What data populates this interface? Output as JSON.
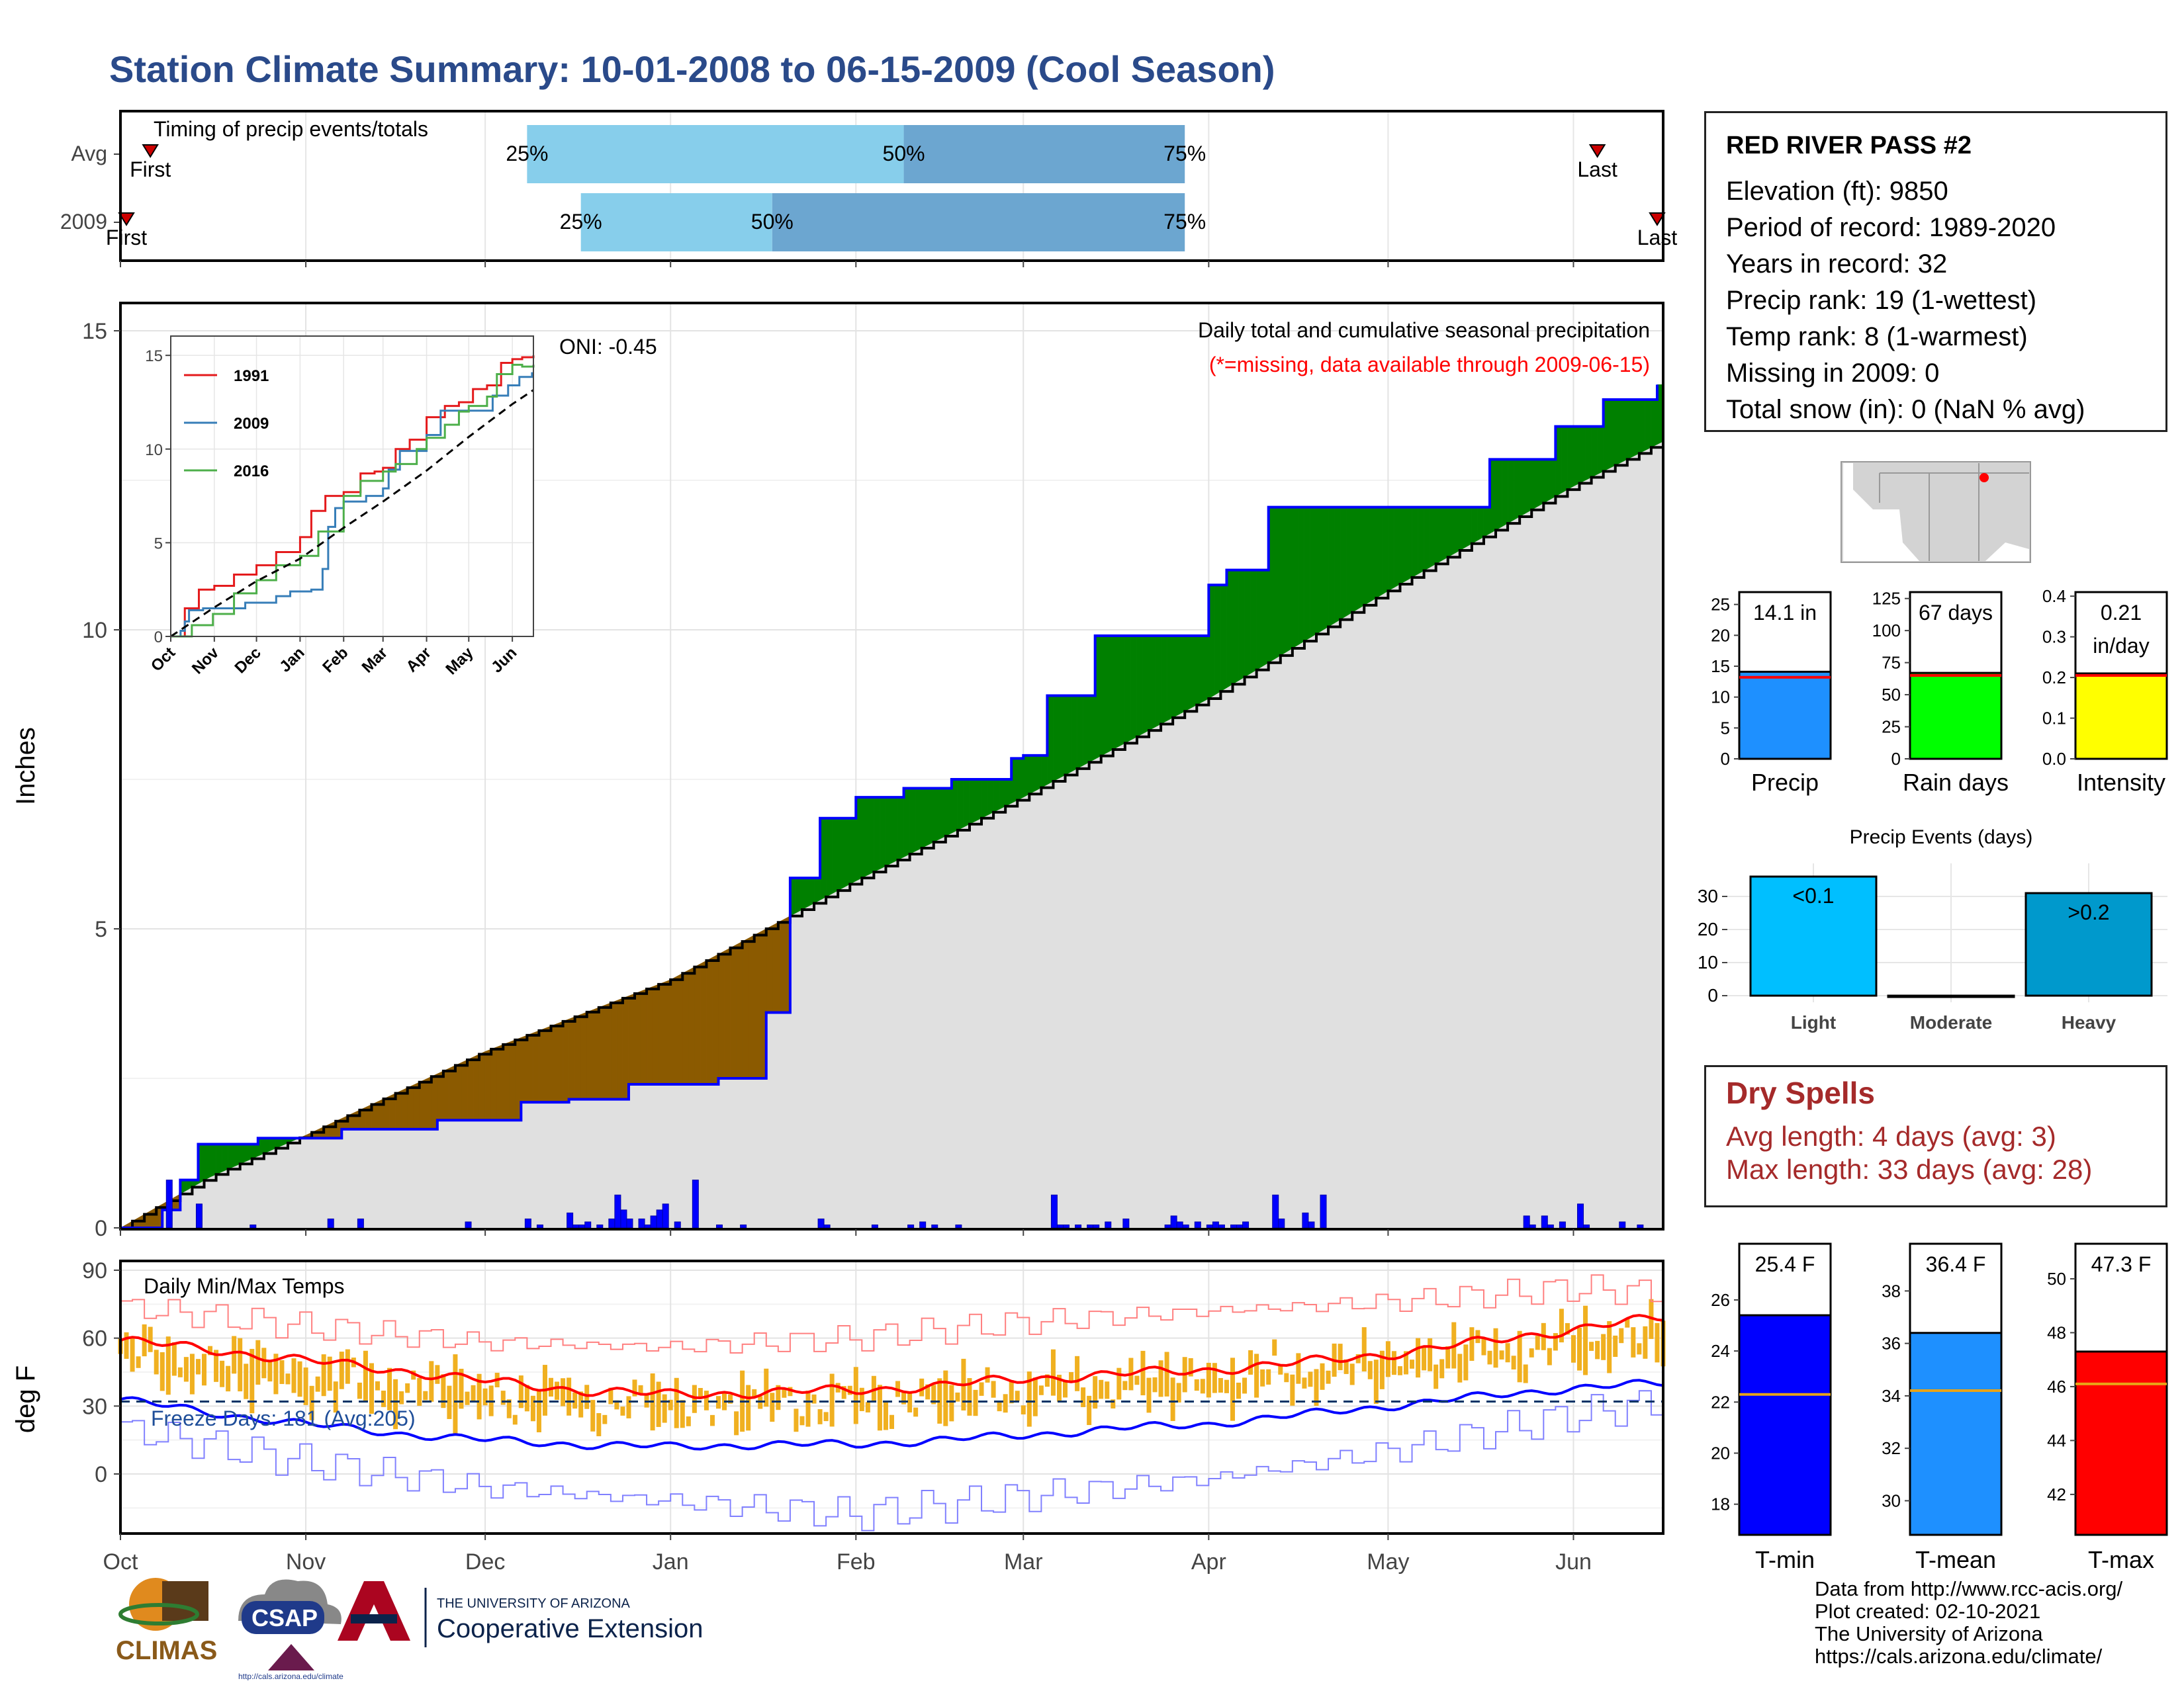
{
  "title": "Station Climate Summary: 10-01-2008 to 06-15-2009 (Cool Season)",
  "timing_panel": {
    "label": "Timing of precip events/totals",
    "rows": [
      {
        "label": "Avg",
        "first": "First",
        "last": "Last",
        "first_x": 5,
        "last_x": 247,
        "q25": 68,
        "q50": 131,
        "q75": 178
      },
      {
        "label": "2009",
        "first": "First",
        "last": "Last",
        "first_x": 1,
        "last_x": 257,
        "q25": 77,
        "q50": 109,
        "q75": 178
      }
    ],
    "q_labels": [
      "25%",
      "50%",
      "75%"
    ],
    "colors": {
      "q25_50": "#87ceeb",
      "q50_75": "#6ca6d0",
      "marker": "#cc0000"
    }
  },
  "station": {
    "name": "RED RIVER PASS #2",
    "lines": [
      "Elevation (ft): 9850",
      "Period of record: 1989-2020",
      "Years in record: 32",
      "Precip rank: 19 (1-wettest)",
      "Temp rank: 8 (1-warmest)",
      "Missing in 2009: 0",
      "Total snow (in): 0 (NaN % avg)"
    ]
  },
  "dry_spells": {
    "title": "Dry Spells",
    "avg": "Avg length: 4 days (avg: 3)",
    "max": "Max length: 33 days (avg: 28)"
  },
  "footer": {
    "lines": [
      "Data from http://www.rcc-acis.org/",
      "Plot created: 02-10-2021",
      "The University of Arizona",
      "https://cals.arizona.edu/climate/"
    ],
    "logo_climas": "CLIMAS",
    "logo_csap": "CSAP",
    "logo_csap_url": "http://cals.arizona.edu/climate",
    "logo_ua_small": "THE UNIVERSITY OF ARIZONA",
    "logo_ua_big": "Cooperative Extension"
  },
  "chart_data": [
    {
      "id": "cumulative-precip",
      "type": "area",
      "title": "Daily total and cumulative seasonal precipitation",
      "subtitle": "(*=missing, data available through 2009-06-15)",
      "annotation": "ONI: -0.45",
      "ylabel": "Inches",
      "ylim": [
        0,
        15.5
      ],
      "yticks": [
        0,
        5,
        10,
        15
      ],
      "x_months": [
        "Oct",
        "Nov",
        "Dec",
        "Jan",
        "Feb",
        "Mar",
        "Apr",
        "May",
        "Jun"
      ],
      "month_starts": [
        0,
        31,
        61,
        92,
        123,
        151,
        182,
        212,
        243
      ],
      "x_range_days": [
        0,
        258
      ],
      "series": [
        {
          "name": "2009",
          "days": [
            0,
            7,
            10,
            13,
            23,
            31,
            37,
            45,
            53,
            61,
            67,
            75,
            85,
            100,
            108,
            112,
            117,
            123,
            131,
            139,
            149,
            151,
            155,
            163,
            182,
            185,
            192,
            202,
            224,
            229,
            240,
            248,
            257
          ],
          "values": [
            0,
            0.3,
            0.8,
            1.4,
            1.5,
            1.5,
            1.65,
            1.65,
            1.8,
            1.8,
            2.1,
            2.15,
            2.4,
            2.5,
            3.6,
            5.85,
            6.85,
            7.2,
            7.35,
            7.5,
            7.85,
            7.9,
            8.9,
            9.9,
            10.75,
            11.0,
            12.05,
            12.05,
            12.05,
            12.85,
            13.4,
            13.85,
            14.1
          ]
        },
        {
          "name": "Avg",
          "days": [
            0,
            15,
            31,
            61,
            92,
            123,
            151,
            182,
            212,
            243,
            258
          ],
          "values": [
            0,
            0.85,
            1.55,
            2.95,
            4.15,
            5.8,
            7.2,
            8.85,
            10.65,
            12.4,
            13.15
          ]
        }
      ],
      "daily_bars": [
        [
          8,
          0.8
        ],
        [
          13,
          0.4
        ],
        [
          22,
          0.05
        ],
        [
          35,
          0.15
        ],
        [
          40,
          0.15
        ],
        [
          58,
          0.1
        ],
        [
          68,
          0.15
        ],
        [
          70,
          0.05
        ],
        [
          75,
          0.25
        ],
        [
          76,
          0.05
        ],
        [
          77,
          0.05
        ],
        [
          78,
          0.1
        ],
        [
          80,
          0.05
        ],
        [
          82,
          0.15
        ],
        [
          83,
          0.55
        ],
        [
          84,
          0.3
        ],
        [
          85,
          0.15
        ],
        [
          87,
          0.15
        ],
        [
          88,
          0.05
        ],
        [
          89,
          0.2
        ],
        [
          90,
          0.3
        ],
        [
          91,
          0.4
        ],
        [
          93,
          0.1
        ],
        [
          96,
          0.8
        ],
        [
          100,
          0.05
        ],
        [
          104,
          0.05
        ],
        [
          117,
          0.15
        ],
        [
          118,
          0.05
        ],
        [
          126,
          0.05
        ],
        [
          132,
          0.05
        ],
        [
          134,
          0.1
        ],
        [
          136,
          0.05
        ],
        [
          140,
          0.05
        ],
        [
          156,
          0.55
        ],
        [
          157,
          0.05
        ],
        [
          158,
          0.05
        ],
        [
          160,
          0.05
        ],
        [
          162,
          0.05
        ],
        [
          163,
          0.05
        ],
        [
          165,
          0.1
        ],
        [
          168,
          0.15
        ],
        [
          175,
          0.05
        ],
        [
          176,
          0.2
        ],
        [
          177,
          0.1
        ],
        [
          178,
          0.05
        ],
        [
          180,
          0.1
        ],
        [
          182,
          0.05
        ],
        [
          183,
          0.1
        ],
        [
          184,
          0.05
        ],
        [
          186,
          0.05
        ],
        [
          187,
          0.05
        ],
        [
          188,
          0.1
        ],
        [
          193,
          0.55
        ],
        [
          194,
          0.15
        ],
        [
          198,
          0.25
        ],
        [
          199,
          0.1
        ],
        [
          201,
          0.55
        ],
        [
          235,
          0.2
        ],
        [
          236,
          0.05
        ],
        [
          238,
          0.2
        ],
        [
          239,
          0.05
        ],
        [
          241,
          0.1
        ],
        [
          244,
          0.4
        ],
        [
          245,
          0.05
        ],
        [
          251,
          0.1
        ],
        [
          254,
          0.05
        ]
      ],
      "colors": {
        "above": "#008000",
        "below": "#8b5a00",
        "avg_fill": "#e0e0e0",
        "line": "#0000ff",
        "bars": "#0000ff"
      }
    },
    {
      "id": "inset-cumulative",
      "type": "line",
      "yticks": [
        0,
        5,
        10,
        15
      ],
      "ylim": [
        0,
        15.5
      ],
      "x_months": [
        "Oct",
        "Nov",
        "Dec",
        "Jan",
        "Feb",
        "Mar",
        "Apr",
        "May",
        "Jun"
      ],
      "series": [
        {
          "name": "1991",
          "color": "#e41a1c",
          "days": [
            0,
            10,
            20,
            31,
            45,
            61,
            75,
            92,
            100,
            110,
            123,
            135,
            145,
            151,
            160,
            170,
            182,
            195,
            205,
            215,
            225,
            235,
            243,
            250,
            258
          ],
          "values": [
            0,
            1.5,
            2.5,
            2.7,
            3.3,
            3.8,
            4.5,
            5.3,
            6.7,
            7.5,
            7.7,
            8.7,
            8.8,
            9.0,
            10.0,
            10.5,
            11.7,
            12.3,
            12.5,
            13.2,
            13.4,
            14.6,
            14.8,
            14.9,
            15.0
          ]
        },
        {
          "name": "2009",
          "color": "#377eb8",
          "days": [
            0,
            7,
            10,
            13,
            23,
            31,
            53,
            75,
            85,
            100,
            108,
            112,
            117,
            123,
            139,
            151,
            155,
            163,
            182,
            192,
            202,
            229,
            240,
            248,
            257
          ],
          "values": [
            0,
            0.3,
            0.8,
            1.4,
            1.5,
            1.5,
            1.8,
            2.15,
            2.4,
            2.5,
            3.6,
            5.85,
            6.85,
            7.2,
            7.5,
            7.9,
            8.9,
            9.9,
            10.75,
            12.05,
            12.05,
            12.85,
            13.4,
            13.85,
            14.1
          ]
        },
        {
          "name": "2016",
          "color": "#4daf4a",
          "days": [
            0,
            15,
            30,
            45,
            61,
            75,
            92,
            105,
            123,
            135,
            151,
            160,
            175,
            182,
            195,
            205,
            212,
            225,
            232,
            243,
            250,
            258
          ],
          "values": [
            0,
            0.6,
            1.2,
            2.3,
            3.0,
            3.8,
            4.3,
            5.6,
            7.5,
            8.3,
            8.8,
            9.2,
            10.0,
            10.6,
            11.3,
            12.0,
            12.3,
            12.8,
            14.0,
            14.5,
            14.4,
            14.5
          ]
        },
        {
          "name": "Avg",
          "color": "#000000",
          "dashed": true,
          "days": [
            0,
            31,
            61,
            92,
            123,
            151,
            182,
            212,
            243,
            258
          ],
          "values": [
            0,
            1.55,
            2.95,
            4.15,
            5.8,
            7.2,
            8.85,
            10.65,
            12.4,
            13.15
          ]
        }
      ]
    },
    {
      "id": "daily-temps",
      "type": "bar",
      "title": "Daily Min/Max Temps",
      "ylabel": "deg F",
      "ylim": [
        -22,
        93
      ],
      "yticks": [
        0,
        30,
        60,
        90
      ],
      "annotation": "Freeze Days: 181 (Avg:205)",
      "freeze_line": 32,
      "x_months": [
        "Oct",
        "Nov",
        "Dec",
        "Jan",
        "Feb",
        "Mar",
        "Apr",
        "May",
        "Jun"
      ],
      "bar_color": "#f0b020",
      "avg_max_points": [
        [
          0,
          59
        ],
        [
          15,
          55
        ],
        [
          31,
          50
        ],
        [
          46,
          46
        ],
        [
          61,
          41
        ],
        [
          77,
          37
        ],
        [
          92,
          35
        ],
        [
          107,
          36
        ],
        [
          123,
          37
        ],
        [
          137,
          39
        ],
        [
          151,
          42
        ],
        [
          166,
          44
        ],
        [
          182,
          46
        ],
        [
          197,
          49
        ],
        [
          212,
          53
        ],
        [
          227,
          58
        ],
        [
          243,
          64
        ],
        [
          258,
          69
        ]
      ],
      "avg_min_points": [
        [
          0,
          33
        ],
        [
          15,
          27
        ],
        [
          31,
          22
        ],
        [
          46,
          18
        ],
        [
          61,
          15
        ],
        [
          77,
          13
        ],
        [
          92,
          12
        ],
        [
          107,
          13
        ],
        [
          123,
          13
        ],
        [
          137,
          15
        ],
        [
          151,
          17
        ],
        [
          166,
          20
        ],
        [
          182,
          22
        ],
        [
          197,
          26
        ],
        [
          212,
          30
        ],
        [
          227,
          34
        ],
        [
          243,
          38
        ],
        [
          258,
          40
        ]
      ],
      "record_max_points": [
        [
          0,
          74
        ],
        [
          31,
          65
        ],
        [
          61,
          58
        ],
        [
          92,
          56
        ],
        [
          123,
          60
        ],
        [
          151,
          67
        ],
        [
          182,
          72
        ],
        [
          212,
          76
        ],
        [
          243,
          82
        ],
        [
          258,
          80
        ]
      ],
      "record_min_points": [
        [
          0,
          20
        ],
        [
          31,
          5
        ],
        [
          61,
          -6
        ],
        [
          92,
          -12
        ],
        [
          123,
          -18
        ],
        [
          151,
          -10
        ],
        [
          182,
          -2
        ],
        [
          212,
          10
        ],
        [
          243,
          26
        ],
        [
          258,
          32
        ]
      ],
      "colors": {
        "avg_max": "#ff0000",
        "avg_min": "#0000ff",
        "rec_max": "#ff8080",
        "rec_min": "#8080ff",
        "freeze": "#003366"
      }
    },
    {
      "id": "summary-precip",
      "type": "bar",
      "panels": [
        {
          "name": "Precip",
          "label": "14.1 in",
          "label2": "",
          "value": 14.1,
          "avg": 13.2,
          "max": 27,
          "ticks": [
            0,
            5,
            10,
            15,
            20,
            25
          ],
          "color": "#1e90ff"
        },
        {
          "name": "Rain days",
          "label": "67 days",
          "label2": "",
          "value": 67,
          "avg": 65,
          "max": 130,
          "ticks": [
            0,
            25,
            50,
            75,
            100,
            125
          ],
          "color": "#00ff00"
        },
        {
          "name": "Intensity",
          "label": "0.21",
          "label2": "in/day",
          "value": 0.21,
          "avg": 0.205,
          "max": 0.41,
          "ticks": [
            0.0,
            0.1,
            0.2,
            0.3,
            0.4
          ],
          "color": "#ffff00"
        }
      ]
    },
    {
      "id": "precip-events",
      "type": "bar",
      "title": "Precip Events (days)",
      "categories": [
        "Light",
        "Moderate",
        "Heavy"
      ],
      "bar_labels": [
        "<0.1",
        "",
        ">0.2"
      ],
      "values": [
        36,
        0,
        31
      ],
      "ylim": [
        0,
        37
      ],
      "yticks": [
        0,
        10,
        20,
        30
      ],
      "colors": [
        "#00bfff",
        "#00bfff",
        "#0099cc"
      ]
    },
    {
      "id": "summary-temps",
      "type": "bar",
      "panels": [
        {
          "name": "T-min",
          "label": "25.4 F",
          "value": 25.4,
          "avg": 22.3,
          "min": 16.8,
          "max": 28.2,
          "ticks": [
            18,
            20,
            22,
            24,
            26
          ],
          "color": "#0000ff"
        },
        {
          "name": "T-mean",
          "label": "36.4 F",
          "value": 36.4,
          "avg": 34.2,
          "min": 28.7,
          "max": 39.8,
          "ticks": [
            30,
            32,
            34,
            36,
            38
          ],
          "color": "#1e90ff"
        },
        {
          "name": "T-max",
          "label": "47.3 F",
          "value": 47.3,
          "avg": 46.1,
          "min": 40.5,
          "max": 51.3,
          "ticks": [
            42,
            44,
            46,
            48,
            50
          ],
          "color": "#ff0000"
        }
      ]
    }
  ]
}
